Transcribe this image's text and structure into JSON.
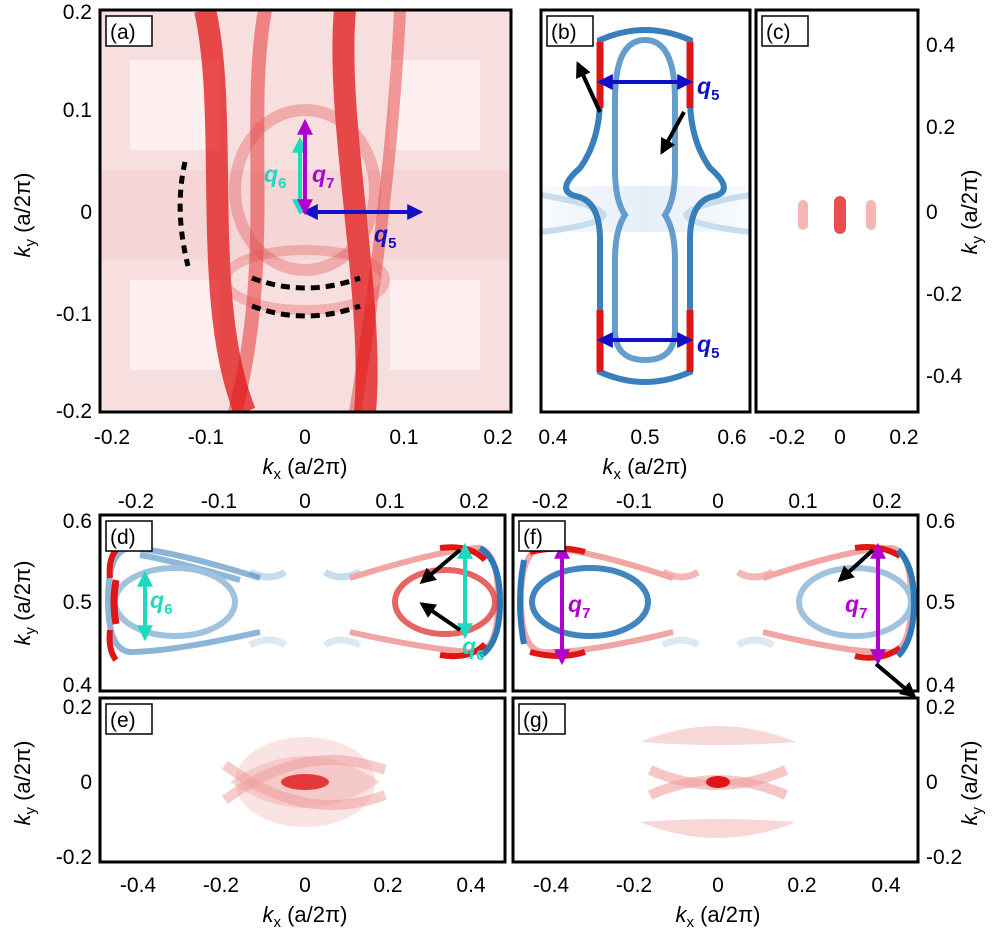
{
  "panels": {
    "a": {
      "label": "(a)"
    },
    "b": {
      "label": "(b)"
    },
    "c": {
      "label": "(c)"
    },
    "d": {
      "label": "(d)"
    },
    "e": {
      "label": "(e)"
    },
    "f": {
      "label": "(f)"
    },
    "g": {
      "label": "(g)"
    }
  },
  "axes": {
    "ky_symbol": "k",
    "ky_sub": "y",
    "kx_symbol": "k",
    "kx_sub": "x",
    "unit": " (a/2π)"
  },
  "ticks": {
    "a_y": [
      "0.2",
      "0.1",
      "0",
      "-0.1",
      "-0.2"
    ],
    "a_x": [
      "-0.2",
      "-0.1",
      "0",
      "0.1",
      "0.2"
    ],
    "b_x": [
      "0.4",
      "0.5",
      "0.6"
    ],
    "c_x": [
      "-0.2",
      "0",
      "0.2"
    ],
    "c_y": [
      "0.4",
      "0.2",
      "0",
      "-0.2",
      "-0.4"
    ],
    "top_df": [
      "-0.2",
      "-0.1",
      "0",
      "0.1",
      "0.2"
    ],
    "d_y": [
      "0.6",
      "0.5",
      "0.4"
    ],
    "f_y": [
      "0.6",
      "0.5",
      "0.4"
    ],
    "e_y": [
      "0.2",
      "0",
      "-0.2"
    ],
    "g_y": [
      "0.2",
      "0",
      "-0.2"
    ],
    "bottom_eg": [
      "-0.4",
      "-0.2",
      "0",
      "0.2",
      "0.4"
    ]
  },
  "arrows": {
    "q5": {
      "sym": "q",
      "sub": "5",
      "color": "#1010c8"
    },
    "q6": {
      "sym": "q",
      "sub": "6",
      "color": "#20d8c0"
    },
    "q7": {
      "sym": "q",
      "sub": "7",
      "color": "#b000d0"
    }
  },
  "colors": {
    "red_band": "#e01515",
    "blue_contour": "#2e78b8",
    "light_red": "#f3b9b9",
    "black": "#000000"
  }
}
